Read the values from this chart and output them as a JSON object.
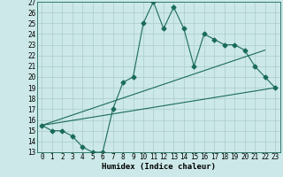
{
  "xlabel": "Humidex (Indice chaleur)",
  "xlim": [
    -0.5,
    23.5
  ],
  "ylim": [
    13,
    27
  ],
  "yticks": [
    13,
    14,
    15,
    16,
    17,
    18,
    19,
    20,
    21,
    22,
    23,
    24,
    25,
    26,
    27
  ],
  "xticks": [
    0,
    1,
    2,
    3,
    4,
    5,
    6,
    7,
    8,
    9,
    10,
    11,
    12,
    13,
    14,
    15,
    16,
    17,
    18,
    19,
    20,
    21,
    22,
    23
  ],
  "bg_color": "#cce8e8",
  "grid_color": "#aacccc",
  "line_color": "#1a6b5a",
  "line1_x": [
    0,
    1,
    2,
    3,
    4,
    5,
    6,
    7,
    8,
    9,
    10,
    11,
    12,
    13,
    14,
    15,
    16,
    17,
    18,
    19,
    20,
    21,
    22,
    23
  ],
  "line1_y": [
    15.5,
    15.0,
    15.0,
    14.5,
    13.5,
    13.0,
    13.0,
    17.0,
    19.5,
    20.0,
    25.0,
    27.0,
    24.5,
    26.5,
    24.5,
    21.0,
    24.0,
    23.5,
    23.0,
    23.0,
    22.5,
    21.0,
    20.0,
    19.0
  ],
  "line2_x": [
    0,
    22
  ],
  "line2_y": [
    15.5,
    22.5
  ],
  "line3_x": [
    0,
    23
  ],
  "line3_y": [
    15.5,
    19.0
  ],
  "marker_size": 2.5,
  "font_size_axis": 6.5,
  "font_size_ticks": 5.5
}
